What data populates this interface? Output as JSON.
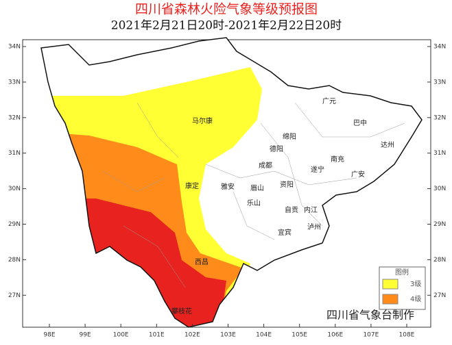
{
  "header": {
    "title": "四川省森林火险气象等级预报图",
    "subtitle": "2021年2月21日20时-2021年2月22日20时"
  },
  "map": {
    "lon_labels": [
      "98E",
      "99E",
      "100E",
      "101E",
      "102E",
      "103E",
      "104E",
      "105E",
      "106E",
      "107E",
      "108E"
    ],
    "lat_labels": [
      "34N",
      "33N",
      "32N",
      "31N",
      "30N",
      "29N",
      "28N",
      "27N"
    ],
    "cities": [
      "广元",
      "巴中",
      "达州",
      "马尔康",
      "绵阳",
      "德阳",
      "南充",
      "成都",
      "遂宁",
      "广安",
      "雅安",
      "眉山",
      "资阳",
      "康定",
      "乐山",
      "自贡",
      "内江",
      "泸州",
      "宜宾",
      "西昌",
      "攀枝花"
    ]
  },
  "legend": {
    "title": "图例",
    "items": [
      {
        "label": "3级",
        "color": "#ffff33"
      },
      {
        "label": "4级",
        "color": "#ff8c1a"
      }
    ]
  },
  "credit": "四川省气象台制作"
}
